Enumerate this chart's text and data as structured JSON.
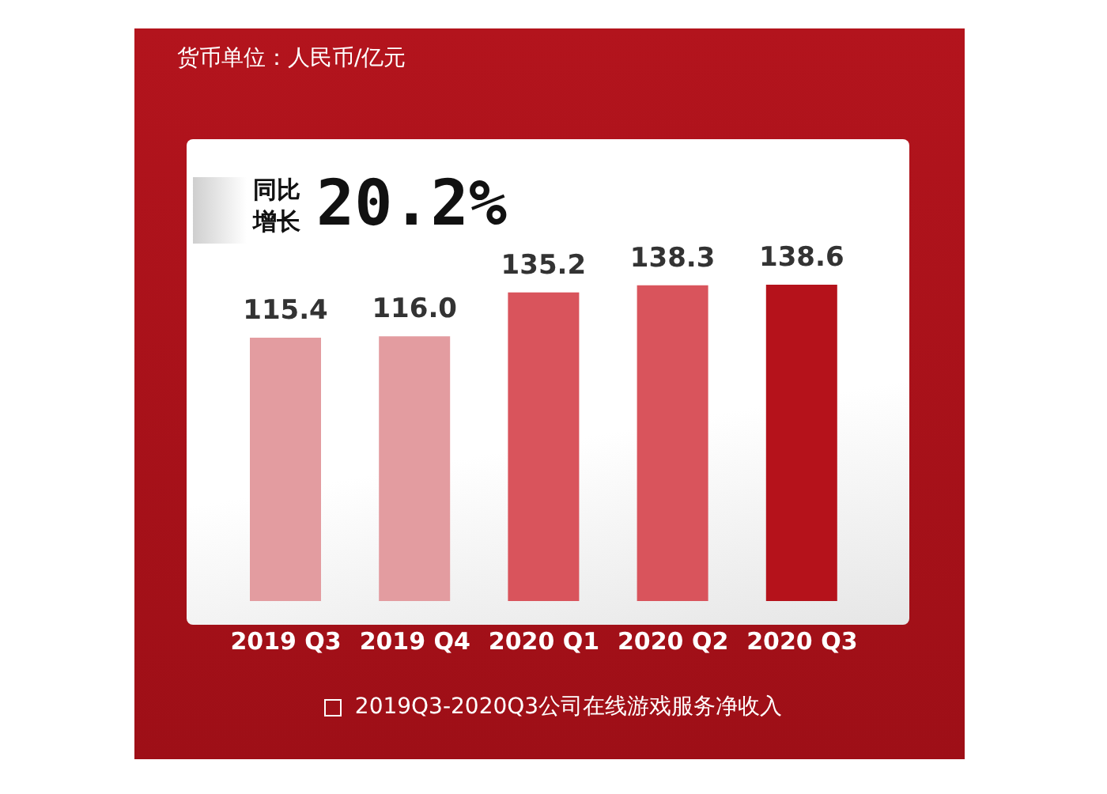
{
  "chart_data": {
    "type": "bar",
    "subtitle": "货币单位：人民币/亿元",
    "categories": [
      "2019 Q3",
      "2019 Q4",
      "2020 Q1",
      "2020 Q2",
      "2020 Q3"
    ],
    "series": [
      {
        "name": "2019Q3-2020Q3公司在线游戏服务净收入",
        "color": "#ffffff",
        "colors": [
          "#e39ca0",
          "#e39ca0",
          "#d9545c",
          "#d9545c",
          "#b5121b"
        ],
        "values": [
          115.4,
          116.0,
          135.2,
          138.3,
          138.6
        ],
        "value_labels": [
          "115.4",
          "116.0",
          "135.2",
          "138.3",
          "138.6"
        ]
      }
    ],
    "annotations": [
      "同比增长",
      "20.2%"
    ],
    "legend": "bottom",
    "grid": false
  }
}
